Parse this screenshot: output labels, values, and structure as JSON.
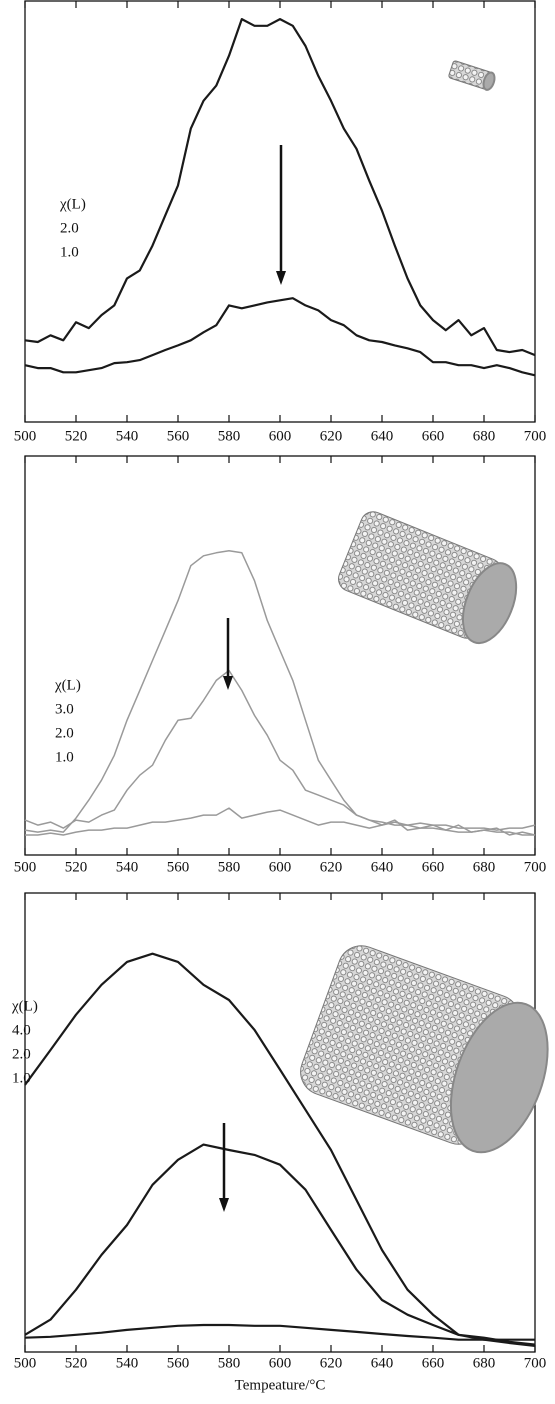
{
  "chart_data": [
    {
      "type": "line",
      "legend_title": "χ(L)",
      "x": [
        500,
        505,
        510,
        515,
        520,
        525,
        530,
        535,
        540,
        545,
        550,
        555,
        560,
        565,
        570,
        575,
        580,
        585,
        590,
        595,
        600,
        605,
        610,
        615,
        620,
        625,
        630,
        635,
        640,
        645,
        650,
        655,
        660,
        665,
        670,
        675,
        680,
        685,
        690,
        695,
        700
      ],
      "series": [
        {
          "name": "2.0",
          "color": "#1a1a1a",
          "values": [
            19.4,
            19,
            20.6,
            19.4,
            23.7,
            22.3,
            25.4,
            27.7,
            34.1,
            36,
            41.9,
            49.1,
            56.2,
            69.7,
            76.3,
            79.9,
            87,
            95.7,
            94.1,
            94.1,
            95.7,
            94.1,
            89.3,
            82.2,
            76.3,
            69.7,
            64.9,
            57.3,
            50.2,
            41.9,
            34.1,
            27.7,
            24.2,
            21.8,
            24.2,
            20.6,
            22.3,
            17.1,
            16.6,
            17.1,
            15.9
          ]
        },
        {
          "name": "1.0",
          "color": "#1a1a1a",
          "values": [
            13.5,
            12.8,
            12.8,
            11.8,
            11.8,
            12.3,
            12.8,
            14,
            14.2,
            14.7,
            15.9,
            17.1,
            18.2,
            19.4,
            21.3,
            23,
            27.7,
            27,
            27.7,
            28.4,
            28.9,
            29.4,
            27.7,
            26.5,
            24.2,
            23,
            20.6,
            19.4,
            19,
            18.2,
            17.5,
            16.6,
            14.2,
            14.2,
            13.5,
            13.5,
            12.8,
            13.5,
            12.8,
            11.8,
            11.1
          ]
        }
      ],
      "xlim": [
        500,
        700
      ],
      "xticks": [
        500,
        520,
        540,
        560,
        580,
        600,
        620,
        640,
        660,
        680,
        700
      ],
      "ylim": [
        0,
        100
      ]
    },
    {
      "type": "line",
      "legend_title": "χ(L)",
      "x": [
        500,
        505,
        510,
        515,
        520,
        525,
        530,
        535,
        540,
        545,
        550,
        555,
        560,
        565,
        570,
        575,
        580,
        585,
        590,
        595,
        600,
        605,
        610,
        615,
        620,
        625,
        630,
        635,
        640,
        645,
        650,
        655,
        660,
        665,
        670,
        675,
        680,
        685,
        690,
        695,
        700
      ],
      "series": [
        {
          "name": "3.0",
          "color": "#9a9a9a",
          "values": [
            6.25,
            5.75,
            6.25,
            5.75,
            9.25,
            13.75,
            18.75,
            25,
            33.75,
            41.25,
            48.75,
            56.25,
            63.75,
            72.5,
            75,
            75.75,
            76.25,
            75.75,
            68.75,
            58.75,
            51.25,
            43.75,
            33.75,
            23.75,
            18.75,
            13.75,
            10,
            8.75,
            8.25,
            7.5,
            7.5,
            8,
            7.5,
            7.5,
            6.75,
            6.75,
            6.75,
            6.25,
            6.75,
            6.75,
            7.5
          ]
        },
        {
          "name": "2.0",
          "color": "#9a9a9a",
          "values": [
            8.75,
            7.5,
            8.25,
            6.75,
            8.75,
            8.25,
            10,
            11.25,
            16.25,
            20,
            22.5,
            28.75,
            33.75,
            34.25,
            38.75,
            43.75,
            46.25,
            41.25,
            35,
            30,
            23.75,
            21.25,
            16.25,
            15,
            13.75,
            12.5,
            10,
            8.75,
            7.5,
            8.75,
            6.25,
            6.75,
            7.5,
            6.25,
            7.5,
            5.75,
            6.25,
            6.75,
            5,
            5.75,
            5
          ]
        },
        {
          "name": "1.0",
          "color": "#9a9a9a",
          "values": [
            5,
            5,
            5.5,
            5,
            5.75,
            6.25,
            6.25,
            6.75,
            6.75,
            7.5,
            8.25,
            8.25,
            8.75,
            9.25,
            10,
            10,
            11.75,
            9.25,
            10,
            10.75,
            11.25,
            10,
            8.75,
            7.5,
            8.25,
            8.25,
            7.5,
            6.75,
            7.5,
            8.25,
            7.5,
            6.75,
            6.75,
            6.25,
            5.75,
            5.75,
            6.25,
            5.75,
            5.75,
            5,
            5
          ]
        }
      ],
      "xlim": [
        500,
        700
      ],
      "xticks": [
        500,
        520,
        540,
        560,
        580,
        600,
        620,
        640,
        660,
        680,
        700
      ],
      "ylim": [
        0,
        100
      ]
    },
    {
      "type": "line",
      "legend_title": "χ(L)",
      "xlabel": "Tempeature/°C",
      "x": [
        500,
        510,
        520,
        530,
        540,
        550,
        560,
        570,
        580,
        590,
        600,
        610,
        620,
        630,
        640,
        650,
        660,
        670,
        680,
        690,
        700
      ],
      "series": [
        {
          "name": "4.0",
          "color": "#1a1a1a",
          "values": [
            53.2,
            61.7,
            70.3,
            77.6,
            83.2,
            85.2,
            83.2,
            77.6,
            73.9,
            66.6,
            56.9,
            47.1,
            37.3,
            25.1,
            12.9,
            3.2,
            -2.9,
            -7.8,
            -8.5,
            -9.5,
            -10.2
          ]
        },
        {
          "name": "2.0",
          "color": "#1a1a1a",
          "values": [
            -7.8,
            -4.1,
            3.2,
            11.7,
            19,
            28.8,
            34.9,
            38.6,
            37.3,
            36.1,
            33.7,
            27.6,
            17.8,
            8.1,
            0.7,
            -2.9,
            -5.4,
            -7.8,
            -9,
            -9.8,
            -10.5
          ]
        },
        {
          "name": "1.0",
          "color": "#1a1a1a",
          "values": [
            -8.5,
            -8.3,
            -7.8,
            -7.3,
            -6.6,
            -6.1,
            -5.6,
            -5.4,
            -5.4,
            -5.6,
            -5.6,
            -6.1,
            -6.6,
            -7.1,
            -7.6,
            -8.1,
            -8.5,
            -9,
            -9,
            -9,
            -9
          ]
        }
      ],
      "xlim": [
        500,
        700
      ],
      "xticks": [
        500,
        520,
        540,
        560,
        580,
        600,
        620,
        640,
        660,
        680,
        700
      ],
      "ylim": [
        -12,
        100
      ]
    }
  ]
}
